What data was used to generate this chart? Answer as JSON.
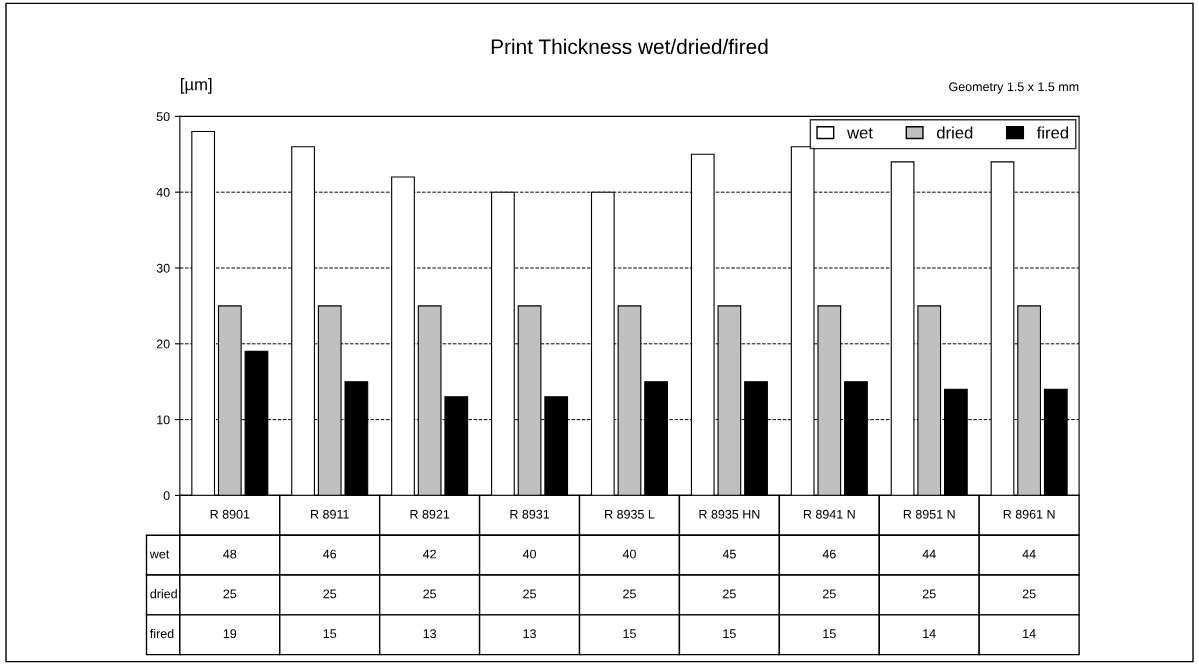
{
  "chart_data": {
    "type": "bar",
    "title": "Print Thickness wet/dried/fired",
    "ylabel": "[µm]",
    "annotations": [
      "Geometry 1.5 x 1.5 mm"
    ],
    "categories": [
      "R 8901",
      "R 8911",
      "R 8921",
      "R 8931",
      "R 8935 L",
      "R 8935 HN",
      "R 8941 N",
      "R 8951 N",
      "R 8961 N"
    ],
    "series": [
      {
        "name": "wet",
        "color": "#ffffff",
        "values": [
          48,
          46,
          42,
          40,
          40,
          45,
          46,
          44,
          44
        ]
      },
      {
        "name": "dried",
        "color": "#c0c0c0",
        "values": [
          25,
          25,
          25,
          25,
          25,
          25,
          25,
          25,
          25
        ]
      },
      {
        "name": "fired",
        "color": "#000000",
        "values": [
          19,
          15,
          13,
          13,
          15,
          15,
          15,
          14,
          14
        ]
      }
    ],
    "ylim": [
      0,
      50
    ],
    "yticks": [
      0,
      10,
      20,
      30,
      40,
      50
    ],
    "grid": "y",
    "legend": "top right",
    "data_labels": true
  }
}
